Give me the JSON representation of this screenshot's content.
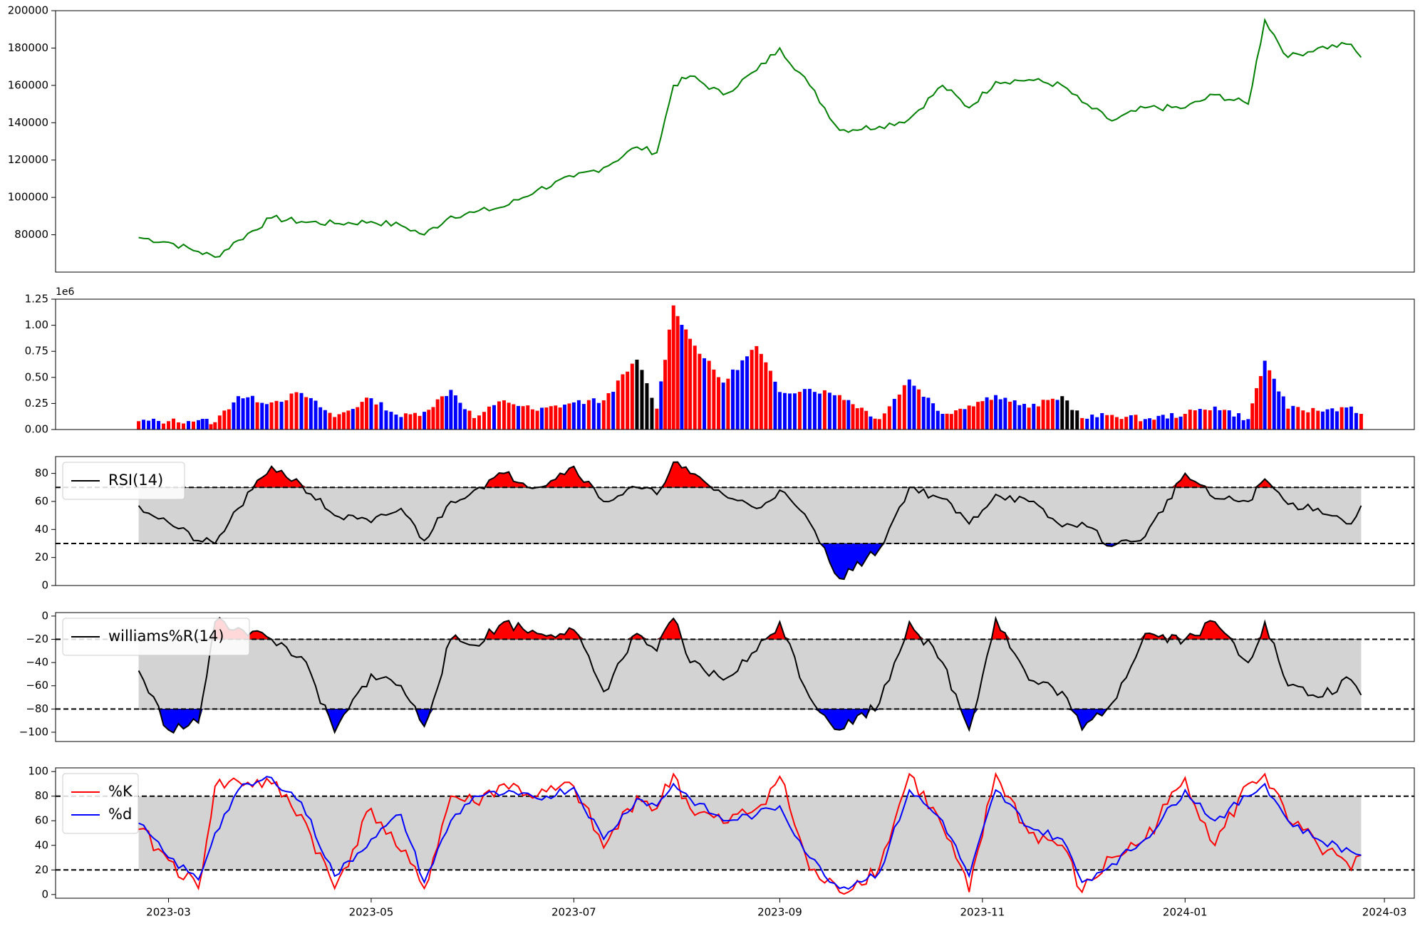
{
  "chart_data": [
    {
      "type": "line",
      "title": "",
      "xlabel": "",
      "ylabel": "",
      "ylim": [
        60000,
        200000
      ],
      "yticks": [
        80000,
        100000,
        120000,
        140000,
        160000,
        180000,
        200000
      ],
      "ytick_labels": [
        "80000",
        "100000",
        "120000",
        "140000",
        "160000",
        "180000",
        "200000"
      ],
      "grid": false,
      "colors": {
        "line": "#008000"
      },
      "series": [
        {
          "x": [
            "2023-02-20",
            "2023-03-01",
            "2023-03-10",
            "2023-03-15",
            "2023-03-22",
            "2023-04-01",
            "2023-04-10",
            "2023-04-20",
            "2023-05-01",
            "2023-05-10",
            "2023-05-17",
            "2023-05-25",
            "2023-06-01",
            "2023-06-10",
            "2023-06-20",
            "2023-07-01",
            "2023-07-10",
            "2023-07-20",
            "2023-07-26",
            "2023-07-31",
            "2023-08-05",
            "2023-08-15",
            "2023-08-25",
            "2023-09-01",
            "2023-09-10",
            "2023-09-19",
            "2023-10-01",
            "2023-10-10",
            "2023-10-20",
            "2023-10-28",
            "2023-11-05",
            "2023-11-15",
            "2023-11-25",
            "2023-12-01",
            "2023-12-10",
            "2023-12-20",
            "2024-01-01",
            "2024-01-10",
            "2024-01-20",
            "2024-01-25",
            "2024-02-01",
            "2024-02-10",
            "2024-02-20",
            "2024-02-23"
          ],
          "values": [
            78500,
            76000,
            71000,
            68000,
            77000,
            89000,
            87000,
            86000,
            87000,
            85000,
            80000,
            90000,
            92000,
            95000,
            104000,
            111000,
            116000,
            127000,
            124000,
            160000,
            165000,
            155000,
            168000,
            180000,
            160000,
            136000,
            138000,
            142000,
            160000,
            148000,
            162000,
            163000,
            160000,
            151000,
            141000,
            148000,
            148000,
            155000,
            150000,
            195000,
            175000,
            180000,
            182000,
            175000
          ]
        }
      ]
    },
    {
      "type": "bar",
      "title": "",
      "xlabel": "",
      "ylabel": "",
      "offset_label": "1e6",
      "ylim": [
        0,
        1250000
      ],
      "yticks": [
        0,
        250000,
        500000,
        750000,
        1000000,
        1250000
      ],
      "ytick_labels": [
        "0.00",
        "0.25",
        "0.50",
        "0.75",
        "1.00",
        "1.25"
      ],
      "colors": {
        "up": "#ff0000",
        "down": "#0000ff",
        "flat": "#000000"
      },
      "x": [
        "2023-02-20",
        "2023-03-01",
        "2023-03-10",
        "2023-03-15",
        "2023-03-22",
        "2023-04-01",
        "2023-04-10",
        "2023-04-20",
        "2023-05-01",
        "2023-05-10",
        "2023-05-17",
        "2023-05-25",
        "2023-06-01",
        "2023-06-10",
        "2023-06-20",
        "2023-07-01",
        "2023-07-10",
        "2023-07-20",
        "2023-07-26",
        "2023-07-31",
        "2023-08-05",
        "2023-08-15",
        "2023-08-25",
        "2023-09-01",
        "2023-09-10",
        "2023-09-19",
        "2023-10-01",
        "2023-10-10",
        "2023-10-20",
        "2023-10-28",
        "2023-11-05",
        "2023-11-15",
        "2023-11-25",
        "2023-12-01",
        "2023-12-10",
        "2023-12-20",
        "2024-01-01",
        "2024-01-10",
        "2024-01-20",
        "2024-01-25",
        "2024-02-01",
        "2024-02-10",
        "2024-02-20",
        "2024-02-23"
      ],
      "values": [
        80000,
        80000,
        90000,
        70000,
        320000,
        260000,
        350000,
        120000,
        300000,
        120000,
        170000,
        380000,
        110000,
        280000,
        180000,
        260000,
        280000,
        670000,
        200000,
        1190000,
        870000,
        450000,
        800000,
        360000,
        390000,
        330000,
        100000,
        480000,
        150000,
        230000,
        330000,
        210000,
        320000,
        110000,
        140000,
        100000,
        150000,
        220000,
        100000,
        660000,
        200000,
        180000,
        220000,
        150000
      ],
      "direction": [
        "up",
        "down",
        "up",
        "down",
        "up",
        "down",
        "up",
        "down",
        "up",
        "down",
        "up",
        "up",
        "down",
        "up",
        "up",
        "up",
        "down",
        "up",
        "flat",
        "up",
        "up",
        "up",
        "down",
        "up",
        "down",
        "down",
        "up",
        "up",
        "down",
        "up",
        "up",
        "down",
        "up",
        "flat",
        "down",
        "up",
        "down",
        "up",
        "down",
        "up",
        "down",
        "up",
        "down",
        "down"
      ]
    },
    {
      "type": "line",
      "title": "",
      "xlabel": "",
      "ylabel": "",
      "legend": [
        "RSI(14)"
      ],
      "legend_position": "top-left",
      "ylim": [
        0,
        92
      ],
      "yticks": [
        0,
        20,
        40,
        60,
        80
      ],
      "ytick_labels": [
        "0",
        "20",
        "40",
        "60",
        "80"
      ],
      "thresholds": [
        30,
        70
      ],
      "colors": {
        "line": "#000000",
        "above": "#ff0000",
        "below": "#0000ff",
        "band": "#d3d3d3"
      },
      "series": [
        {
          "name": "RSI(14)",
          "x": [
            "2023-02-20",
            "2023-03-01",
            "2023-03-10",
            "2023-03-15",
            "2023-03-22",
            "2023-04-01",
            "2023-04-10",
            "2023-04-20",
            "2023-05-01",
            "2023-05-10",
            "2023-05-17",
            "2023-05-25",
            "2023-06-01",
            "2023-06-10",
            "2023-06-20",
            "2023-07-01",
            "2023-07-10",
            "2023-07-20",
            "2023-07-26",
            "2023-07-31",
            "2023-08-05",
            "2023-08-15",
            "2023-08-25",
            "2023-09-01",
            "2023-09-10",
            "2023-09-19",
            "2023-10-01",
            "2023-10-10",
            "2023-10-20",
            "2023-10-28",
            "2023-11-05",
            "2023-11-15",
            "2023-11-25",
            "2023-12-01",
            "2023-12-10",
            "2023-12-20",
            "2024-01-01",
            "2024-01-10",
            "2024-01-20",
            "2024-01-25",
            "2024-02-01",
            "2024-02-10",
            "2024-02-20",
            "2024-02-23"
          ],
          "values": [
            57,
            45,
            32,
            30,
            55,
            85,
            72,
            50,
            45,
            55,
            32,
            60,
            68,
            80,
            70,
            85,
            60,
            70,
            65,
            88,
            80,
            65,
            55,
            68,
            45,
            5,
            26,
            70,
            62,
            44,
            65,
            60,
            42,
            45,
            28,
            35,
            80,
            62,
            60,
            76,
            58,
            55,
            44,
            57
          ]
        }
      ]
    },
    {
      "type": "line",
      "title": "",
      "xlabel": "",
      "ylabel": "",
      "legend": [
        "williams%R(14)"
      ],
      "legend_position": "top-left",
      "ylim": [
        -108,
        3
      ],
      "yticks": [
        -100,
        -80,
        -60,
        -40,
        -20,
        0
      ],
      "ytick_labels": [
        "−100",
        "−80",
        "−60",
        "−40",
        "−20",
        "0"
      ],
      "thresholds": [
        -80,
        -20
      ],
      "colors": {
        "line": "#000000",
        "above": "#ff0000",
        "below": "#0000ff",
        "band": "#d3d3d3"
      },
      "series": [
        {
          "name": "williams%R(14)",
          "x": [
            "2023-02-20",
            "2023-03-01",
            "2023-03-10",
            "2023-03-15",
            "2023-03-22",
            "2023-04-01",
            "2023-04-10",
            "2023-04-20",
            "2023-05-01",
            "2023-05-10",
            "2023-05-17",
            "2023-05-25",
            "2023-06-01",
            "2023-06-10",
            "2023-06-20",
            "2023-07-01",
            "2023-07-10",
            "2023-07-20",
            "2023-07-26",
            "2023-07-31",
            "2023-08-05",
            "2023-08-15",
            "2023-08-25",
            "2023-09-01",
            "2023-09-10",
            "2023-09-19",
            "2023-10-01",
            "2023-10-10",
            "2023-10-20",
            "2023-10-28",
            "2023-11-05",
            "2023-11-15",
            "2023-11-25",
            "2023-12-01",
            "2023-12-10",
            "2023-12-20",
            "2024-01-01",
            "2024-01-10",
            "2024-01-20",
            "2024-01-25",
            "2024-02-01",
            "2024-02-10",
            "2024-02-20",
            "2024-02-23"
          ],
          "values": [
            -47,
            -98,
            -92,
            -5,
            -10,
            -20,
            -35,
            -100,
            -50,
            -60,
            -95,
            -20,
            -25,
            -5,
            -15,
            -12,
            -65,
            -15,
            -30,
            -2,
            -40,
            -55,
            -30,
            -5,
            -70,
            -98,
            -75,
            -5,
            -40,
            -98,
            -2,
            -55,
            -65,
            -98,
            -75,
            -15,
            -20,
            -5,
            -40,
            -5,
            -60,
            -70,
            -55,
            -68
          ]
        }
      ]
    },
    {
      "type": "line",
      "title": "",
      "xlabel": "",
      "ylabel": "",
      "legend": [
        "%K",
        "%d"
      ],
      "legend_position": "top-left",
      "ylim": [
        -3,
        103
      ],
      "yticks": [
        0,
        20,
        40,
        60,
        80,
        100
      ],
      "ytick_labels": [
        "0",
        "20",
        "40",
        "60",
        "80",
        "100"
      ],
      "thresholds": [
        20,
        80
      ],
      "xticks": [
        "2023-03-01",
        "2023-05-01",
        "2023-07-01",
        "2023-09-01",
        "2023-11-01",
        "2024-01-01",
        "2024-03-01"
      ],
      "xtick_labels": [
        "2023-03",
        "2023-05",
        "2023-07",
        "2023-09",
        "2023-11",
        "2024-01",
        "2024-03"
      ],
      "colors": {
        "k": "#ff0000",
        "d": "#0000ff",
        "band": "#d3d3d3"
      },
      "series": [
        {
          "name": "%K",
          "x": [
            "2023-02-20",
            "2023-03-01",
            "2023-03-10",
            "2023-03-15",
            "2023-03-22",
            "2023-04-01",
            "2023-04-10",
            "2023-04-20",
            "2023-05-01",
            "2023-05-10",
            "2023-05-17",
            "2023-05-25",
            "2023-06-01",
            "2023-06-10",
            "2023-06-20",
            "2023-07-01",
            "2023-07-10",
            "2023-07-20",
            "2023-07-26",
            "2023-07-31",
            "2023-08-05",
            "2023-08-15",
            "2023-08-25",
            "2023-09-01",
            "2023-09-10",
            "2023-09-19",
            "2023-10-01",
            "2023-10-10",
            "2023-10-20",
            "2023-10-28",
            "2023-11-05",
            "2023-11-15",
            "2023-11-25",
            "2023-12-01",
            "2023-12-10",
            "2023-12-20",
            "2024-01-01",
            "2024-01-10",
            "2024-01-20",
            "2024-01-25",
            "2024-02-01",
            "2024-02-10",
            "2024-02-20",
            "2024-02-23"
          ],
          "values": [
            53,
            28,
            5,
            88,
            92,
            90,
            65,
            5,
            70,
            35,
            5,
            80,
            75,
            90,
            80,
            88,
            38,
            80,
            70,
            98,
            70,
            58,
            70,
            96,
            20,
            2,
            22,
            98,
            55,
            2,
            98,
            50,
            40,
            2,
            30,
            45,
            95,
            40,
            90,
            98,
            60,
            40,
            20,
            32
          ]
        },
        {
          "name": "%d",
          "x": [
            "2023-02-20",
            "2023-03-01",
            "2023-03-10",
            "2023-03-15",
            "2023-03-22",
            "2023-04-01",
            "2023-04-10",
            "2023-04-20",
            "2023-05-01",
            "2023-05-10",
            "2023-05-17",
            "2023-05-25",
            "2023-06-01",
            "2023-06-10",
            "2023-06-20",
            "2023-07-01",
            "2023-07-10",
            "2023-07-20",
            "2023-07-26",
            "2023-07-31",
            "2023-08-05",
            "2023-08-15",
            "2023-08-25",
            "2023-09-01",
            "2023-09-10",
            "2023-09-19",
            "2023-10-01",
            "2023-10-10",
            "2023-10-20",
            "2023-10-28",
            "2023-11-05",
            "2023-11-15",
            "2023-11-25",
            "2023-12-01",
            "2023-12-10",
            "2023-12-20",
            "2024-01-01",
            "2024-01-10",
            "2024-01-20",
            "2024-01-25",
            "2024-02-01",
            "2024-02-10",
            "2024-02-20",
            "2024-02-23"
          ],
          "values": [
            58,
            30,
            12,
            50,
            85,
            95,
            75,
            15,
            45,
            65,
            10,
            60,
            80,
            82,
            78,
            87,
            45,
            78,
            72,
            90,
            78,
            60,
            65,
            72,
            30,
            5,
            18,
            85,
            60,
            15,
            85,
            55,
            45,
            10,
            25,
            45,
            85,
            60,
            80,
            90,
            60,
            45,
            35,
            32
          ]
        }
      ]
    }
  ]
}
